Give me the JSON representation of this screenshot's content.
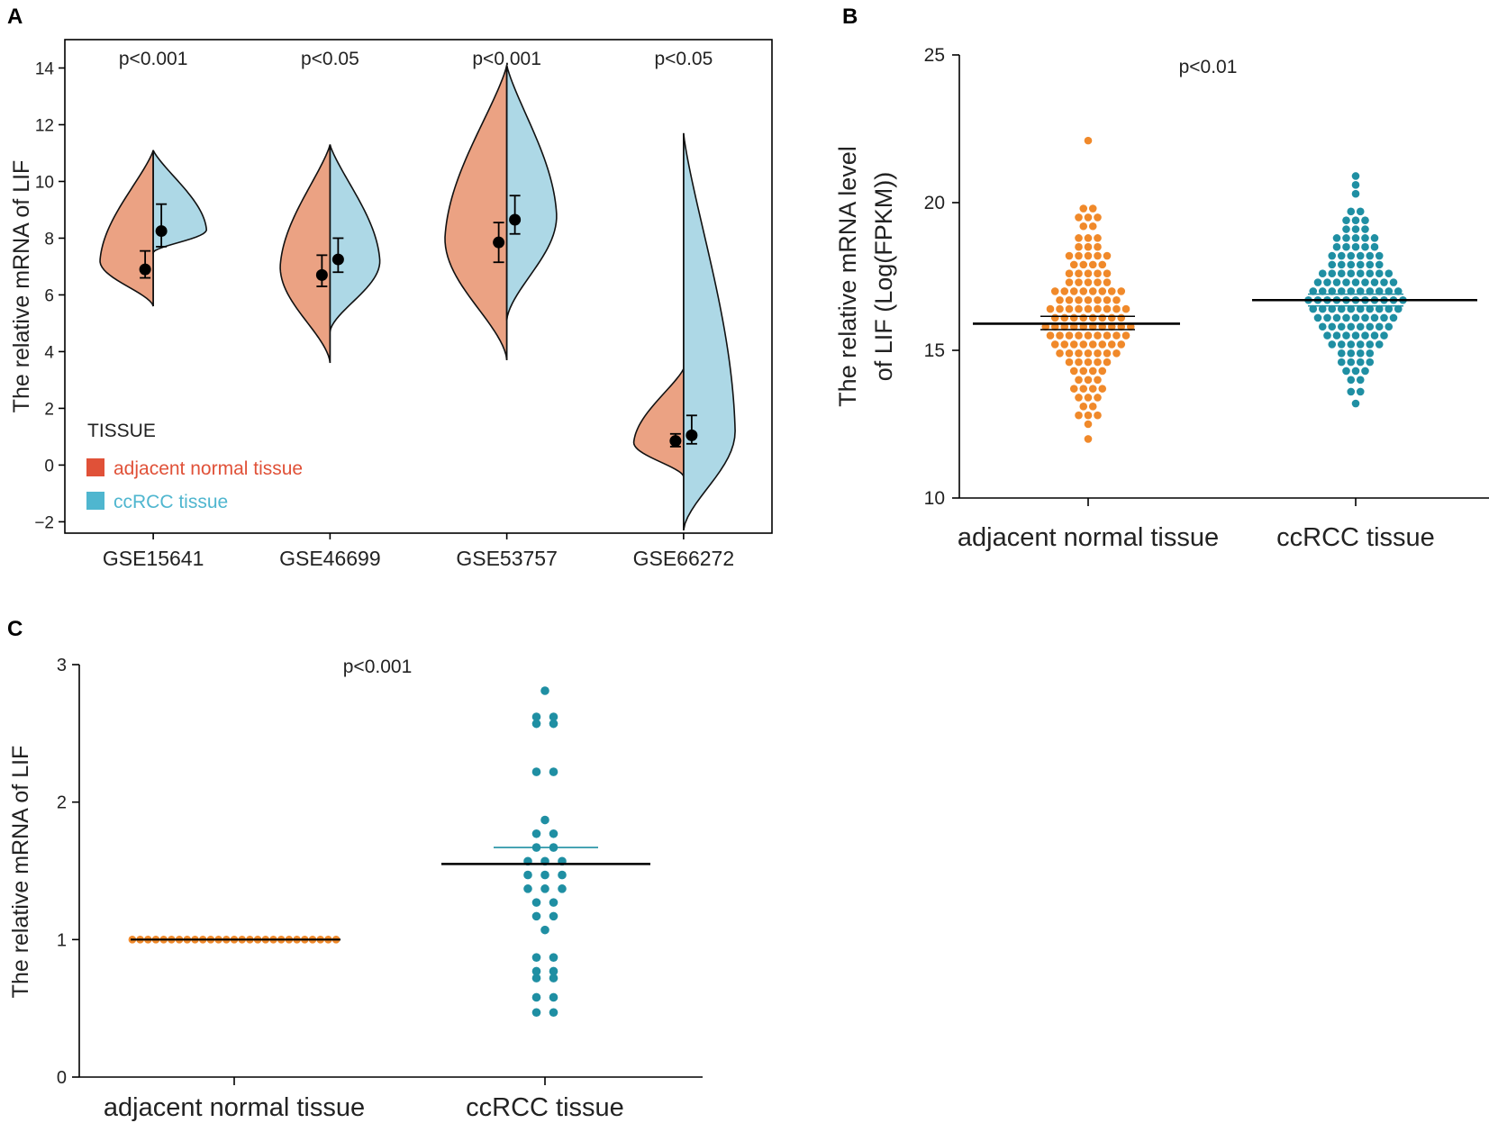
{
  "colors": {
    "normal_violin": "#EBA283",
    "tumor_violin": "#ADD8E6",
    "legend_normal": "#E05138",
    "legend_tumor": "#4FB6CF",
    "dot_normal": "#F0892A",
    "dot_tumor": "#1F8FA3",
    "tumor_sem_line": "#1F8FA3"
  },
  "chart_data": [
    {
      "panel": "A",
      "type": "split-violin",
      "ylabel": "The relative mRNA of LIF",
      "ylim": [
        -2.4,
        15
      ],
      "yticks": [
        -2,
        0,
        2,
        4,
        6,
        8,
        10,
        12,
        14
      ],
      "ytick_labels": [
        "−2",
        "0",
        "2",
        "4",
        "6",
        "8",
        "10",
        "12",
        "14"
      ],
      "categories": [
        "GSE15641",
        "GSE46699",
        "GSE53757",
        "GSE66272"
      ],
      "pvalues": [
        "p<0.001",
        "p<0.05",
        "p<0.001",
        "p<0.05"
      ],
      "legend": {
        "title": "TISSUE",
        "entries": [
          "adjacent normal tissue",
          "ccRCC tissue"
        ]
      },
      "series": [
        {
          "name": "adjacent normal tissue",
          "min": [
            5.6,
            3.6,
            3.7,
            -0.4
          ],
          "max": [
            11.1,
            11.3,
            14.1,
            3.4
          ],
          "mode": [
            7.2,
            7.0,
            8.0,
            0.8
          ],
          "width": [
            0.62,
            0.58,
            0.72,
            0.58
          ],
          "mean": [
            6.9,
            6.7,
            7.85,
            0.85
          ],
          "err_low": [
            6.6,
            6.3,
            7.15,
            0.65
          ],
          "err_high": [
            7.55,
            7.4,
            8.55,
            1.1
          ]
        },
        {
          "name": "ccRCC tissue",
          "min": [
            7.5,
            4.7,
            5.1,
            -2.3
          ],
          "max": [
            11.1,
            11.3,
            14.1,
            11.7
          ],
          "mode": [
            8.3,
            7.2,
            8.8,
            1.2
          ],
          "width": [
            0.62,
            0.58,
            0.58,
            0.6
          ],
          "mean": [
            8.25,
            7.25,
            8.65,
            1.05
          ],
          "err_low": [
            7.7,
            6.8,
            8.15,
            0.75
          ],
          "err_high": [
            9.2,
            8.0,
            9.5,
            1.75
          ]
        }
      ]
    },
    {
      "panel": "B",
      "type": "scatter",
      "ylabel_line1": "The relative mRNA level",
      "ylabel_line2": "of LIF (Log(FPKM))",
      "ylim": [
        10,
        25
      ],
      "yticks": [
        10,
        15,
        20,
        25
      ],
      "categories": [
        "adjacent normal tissue",
        "ccRCC tissue"
      ],
      "pvalue": "p<0.01",
      "series": [
        {
          "name": "adjacent normal tissue",
          "mean": 15.9,
          "sem_low": 15.7,
          "sem_high": 16.15,
          "rows": [
            [
              12.0,
              1
            ],
            [
              12.5,
              1
            ],
            [
              12.8,
              3
            ],
            [
              13.1,
              2
            ],
            [
              13.4,
              3
            ],
            [
              13.7,
              4
            ],
            [
              14.0,
              3
            ],
            [
              14.3,
              4
            ],
            [
              14.6,
              5
            ],
            [
              14.9,
              7
            ],
            [
              15.2,
              8
            ],
            [
              15.5,
              9
            ],
            [
              15.8,
              10
            ],
            [
              16.1,
              8
            ],
            [
              16.4,
              9
            ],
            [
              16.7,
              7
            ],
            [
              17.0,
              8
            ],
            [
              17.3,
              5
            ],
            [
              17.6,
              5
            ],
            [
              17.9,
              4
            ],
            [
              18.2,
              5
            ],
            [
              18.5,
              3
            ],
            [
              18.8,
              3
            ],
            [
              19.2,
              2
            ],
            [
              19.5,
              3
            ],
            [
              19.8,
              2
            ],
            [
              22.1,
              1
            ]
          ]
        },
        {
          "name": "ccRCC tissue",
          "mean": 16.7,
          "sem_low": 16.5,
          "sem_high": 16.9,
          "rows": [
            [
              13.2,
              1
            ],
            [
              13.6,
              2
            ],
            [
              14.0,
              2
            ],
            [
              14.3,
              3
            ],
            [
              14.6,
              4
            ],
            [
              14.9,
              4
            ],
            [
              15.2,
              6
            ],
            [
              15.5,
              7
            ],
            [
              15.8,
              8
            ],
            [
              16.1,
              9
            ],
            [
              16.4,
              10
            ],
            [
              16.7,
              11
            ],
            [
              17.0,
              10
            ],
            [
              17.3,
              9
            ],
            [
              17.6,
              8
            ],
            [
              17.9,
              6
            ],
            [
              18.2,
              6
            ],
            [
              18.5,
              5
            ],
            [
              18.8,
              5
            ],
            [
              19.1,
              3
            ],
            [
              19.4,
              3
            ],
            [
              19.7,
              2
            ],
            [
              20.3,
              1
            ],
            [
              20.6,
              1
            ],
            [
              20.9,
              1
            ]
          ]
        }
      ]
    },
    {
      "panel": "C",
      "type": "scatter",
      "ylabel": "The relative mRNA of LIF",
      "ylim": [
        0,
        3
      ],
      "yticks": [
        0,
        1,
        2,
        3
      ],
      "categories": [
        "adjacent normal tissue",
        "ccRCC tissue"
      ],
      "pvalue": "p<0.001",
      "series": [
        {
          "name": "adjacent normal tissue",
          "mean": 1.0,
          "rows": [
            [
              1.0,
              27
            ]
          ]
        },
        {
          "name": "ccRCC tissue",
          "mean": 1.55,
          "sem_high": 1.67,
          "rows": [
            [
              0.47,
              2
            ],
            [
              0.58,
              2
            ],
            [
              0.72,
              2
            ],
            [
              0.77,
              2
            ],
            [
              0.87,
              2
            ],
            [
              1.07,
              1
            ],
            [
              1.17,
              2
            ],
            [
              1.27,
              2
            ],
            [
              1.37,
              3
            ],
            [
              1.47,
              3
            ],
            [
              1.57,
              3
            ],
            [
              1.67,
              2
            ],
            [
              1.77,
              2
            ],
            [
              1.87,
              1
            ],
            [
              2.22,
              2
            ],
            [
              2.57,
              2
            ],
            [
              2.62,
              2
            ],
            [
              2.81,
              1
            ]
          ]
        }
      ]
    }
  ],
  "panels": {
    "a": "A",
    "b": "B",
    "c": "C"
  }
}
